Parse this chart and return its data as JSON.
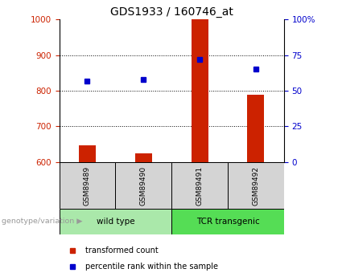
{
  "title": "GDS1933 / 160746_at",
  "samples": [
    "GSM89489",
    "GSM89490",
    "GSM89491",
    "GSM89492"
  ],
  "transformed_counts": [
    648,
    625,
    1000,
    788
  ],
  "percentile_ranks": [
    57,
    58,
    72,
    65
  ],
  "bar_baseline": 600,
  "left_ylim": [
    600,
    1000
  ],
  "right_ylim": [
    0,
    100
  ],
  "left_yticks": [
    600,
    700,
    800,
    900,
    1000
  ],
  "right_yticks": [
    0,
    25,
    50,
    75,
    100
  ],
  "left_color": "#cc2200",
  "right_color": "#0000cc",
  "bar_color": "#cc2200",
  "marker_color": "#0000cc",
  "groups": [
    {
      "label": "wild type",
      "samples": [
        0,
        1
      ],
      "color": "#aae8aa"
    },
    {
      "label": "TCR transgenic",
      "samples": [
        2,
        3
      ],
      "color": "#55dd55"
    }
  ],
  "legend_items": [
    {
      "label": "transformed count",
      "color": "#cc2200"
    },
    {
      "label": "percentile rank within the sample",
      "color": "#0000cc"
    }
  ],
  "title_fontsize": 10,
  "tick_fontsize": 7.5,
  "bar_width": 0.3
}
